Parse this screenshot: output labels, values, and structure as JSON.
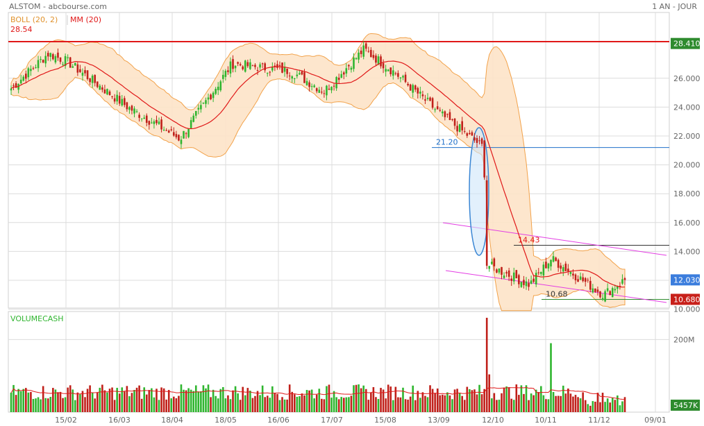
{
  "header": {
    "title": "ALSTOM - abcbourse.com",
    "period": "1 AN - JOUR",
    "legend_boll": "BOLL (20, 2)",
    "legend_mm": "MM (20)",
    "resistance_label": "28.54"
  },
  "colors": {
    "band_fill": "#fde3c8",
    "band_stroke": "#f2a24a",
    "mm": "#e01818",
    "up": "#2fb52f",
    "down": "#c0201a",
    "resistance": "#e01818",
    "channel": "#e33ce3",
    "support": "#2e8b2e",
    "level_21": "#1e6fc9",
    "grid": "#dcdcdc",
    "last_badge": "#3b7ddd",
    "top_badge": "#2e8b2e",
    "low_badge": "#c8201a"
  },
  "chart_data": [
    {
      "type": "candlestick",
      "title": "ALSTOM - abcbourse.com",
      "period": "1 AN - JOUR",
      "y_ticks": [
        "26.000",
        "24.000",
        "22.000",
        "20.000",
        "18.000",
        "16.000",
        "14.000",
        "12.000",
        "10.000"
      ],
      "ylim": [
        10,
        29.2
      ],
      "x_ticks": [
        "15/02",
        "16/03",
        "18/04",
        "18/05",
        "16/06",
        "17/07",
        "15/08",
        "13/09",
        "12/10",
        "10/11",
        "11/12",
        "09/01"
      ],
      "grid": true,
      "indicators": [
        "BOLL (20, 2)",
        "MM (20)"
      ],
      "price_key_points": [
        {
          "x": "start",
          "close": 25.3
        },
        {
          "x": "early Feb",
          "close": 27.7
        },
        {
          "x": "15/02",
          "close": 27.2
        },
        {
          "x": "16/03",
          "close": 24.0
        },
        {
          "x": "18/04",
          "close": 21.8
        },
        {
          "x": "18/05",
          "close": 27.0
        },
        {
          "x": "16/06",
          "close": 26.5
        },
        {
          "x": "late June",
          "close": 25.1
        },
        {
          "x": "late July",
          "close": 28.0
        },
        {
          "x": "15/08",
          "close": 26.4
        },
        {
          "x": "13/09",
          "close": 23.5
        },
        {
          "x": "early Oct",
          "close": 21.2
        },
        {
          "x": "early Oct gap",
          "close": 13.1
        },
        {
          "x": "12/10",
          "close": 12.8
        },
        {
          "x": "late Oct",
          "close": 11.7
        },
        {
          "x": "10/11",
          "close": 13.5
        },
        {
          "x": "11/12",
          "close": 11.0
        },
        {
          "x": "end",
          "close": 12.03
        }
      ],
      "annotations": [
        {
          "label": "28.54",
          "type": "horizontal",
          "value": 28.54
        },
        {
          "label": "21.20",
          "type": "horizontal",
          "value": 21.2
        },
        {
          "label": "14.43",
          "type": "horizontal",
          "value": 14.43
        },
        {
          "label": "10.68",
          "type": "horizontal",
          "value": 10.68
        }
      ],
      "price_badges": [
        {
          "label": "28.410",
          "value": 28.41
        },
        {
          "label": "12.030",
          "value": 12.03
        },
        {
          "label": "10.680",
          "value": 10.68
        }
      ]
    },
    {
      "type": "bar",
      "title": "VOLUMECASH",
      "y_ticks": [
        "200M"
      ],
      "last_value_label": "5457K",
      "volume_key_points": [
        {
          "x": "typical",
          "value": 55
        },
        {
          "x": "early Oct gap",
          "value": 260
        },
        {
          "x": "early Nov",
          "value": 190
        },
        {
          "x": "late Nov",
          "value": 60
        }
      ],
      "volume_unit": "M"
    }
  ]
}
